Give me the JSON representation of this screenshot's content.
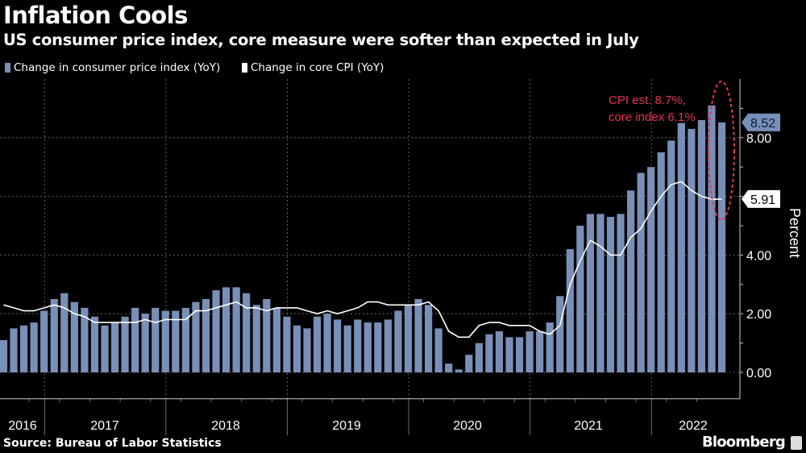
{
  "chart_data": {
    "type": "bar",
    "title": "Inflation Cools",
    "subtitle": "US consumer price index, core measure were softer than expected in July",
    "ylabel": "Percent",
    "ylim": [
      -0.9,
      10
    ],
    "yticks": [
      "0.00",
      "2.00",
      "4.00",
      "8.00"
    ],
    "grid": true,
    "legend": "top-left",
    "x_start": "2016-08",
    "x_end": "2022-07",
    "year_labels": [
      "2016",
      "2017",
      "2018",
      "2019",
      "2020",
      "2021",
      "2022"
    ],
    "series": [
      {
        "name": "Change in consumer price index (YoY)",
        "type": "bar",
        "color": "#7890b8",
        "values": [
          1.1,
          1.5,
          1.6,
          1.7,
          2.1,
          2.5,
          2.7,
          2.4,
          2.2,
          1.9,
          1.6,
          1.7,
          1.9,
          2.2,
          2.0,
          2.2,
          2.1,
          2.1,
          2.2,
          2.4,
          2.5,
          2.8,
          2.9,
          2.9,
          2.7,
          2.3,
          2.5,
          2.2,
          1.9,
          1.6,
          1.5,
          1.9,
          2.0,
          1.8,
          1.6,
          1.8,
          1.7,
          1.7,
          1.8,
          2.1,
          2.3,
          2.5,
          2.3,
          1.5,
          0.3,
          0.1,
          0.6,
          1.0,
          1.3,
          1.4,
          1.2,
          1.2,
          1.4,
          1.4,
          1.7,
          2.6,
          4.2,
          5.0,
          5.4,
          5.4,
          5.3,
          5.4,
          6.2,
          6.8,
          7.0,
          7.5,
          7.9,
          8.5,
          8.3,
          8.6,
          9.1,
          8.52
        ]
      },
      {
        "name": "Change in core CPI (YoY)",
        "type": "line",
        "color": "#ffffff",
        "values": [
          2.3,
          2.2,
          2.1,
          2.1,
          2.2,
          2.3,
          2.2,
          2.0,
          1.9,
          1.7,
          1.7,
          1.7,
          1.7,
          1.7,
          1.8,
          1.7,
          1.8,
          1.8,
          1.8,
          2.1,
          2.1,
          2.2,
          2.3,
          2.4,
          2.2,
          2.2,
          2.1,
          2.2,
          2.2,
          2.2,
          2.1,
          2.0,
          2.1,
          2.0,
          2.1,
          2.2,
          2.4,
          2.4,
          2.3,
          2.3,
          2.3,
          2.3,
          2.4,
          2.1,
          1.4,
          1.2,
          1.2,
          1.6,
          1.7,
          1.7,
          1.6,
          1.6,
          1.6,
          1.4,
          1.3,
          1.6,
          3.0,
          3.8,
          4.5,
          4.3,
          4.0,
          4.0,
          4.6,
          4.9,
          5.5,
          6.0,
          6.4,
          6.5,
          6.2,
          6.0,
          5.9,
          5.91
        ]
      }
    ],
    "last_value_labels": {
      "cpi": "8.52",
      "core": "5.91"
    },
    "annotation": {
      "line1": "CPI est. 8.7%,",
      "line2": "core index 6.1%",
      "color": "#e8304f"
    }
  },
  "footer": {
    "source": "Source: Bureau of Labor Statistics",
    "brand": "Bloomberg"
  }
}
